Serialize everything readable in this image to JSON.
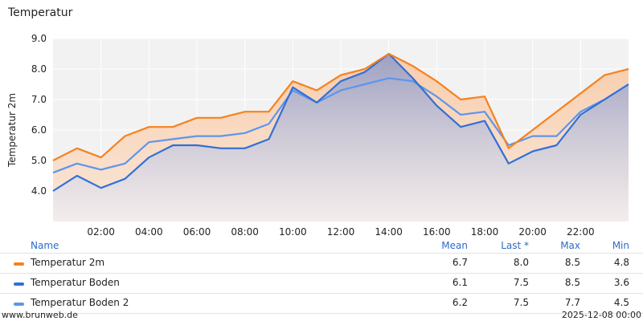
{
  "title": "Temperatur",
  "chart_data": {
    "type": "area",
    "ylabel": "Temperatur 2m",
    "xlabel": "",
    "ylim": [
      3.0,
      9.0
    ],
    "xlim": [
      0,
      24
    ],
    "yticks": [
      4.0,
      5.0,
      6.0,
      7.0,
      8.0,
      9.0
    ],
    "ytick_labels": [
      "4.0",
      "5.0",
      "6.0",
      "7.0",
      "8.0",
      "9.0"
    ],
    "xticks": [
      2,
      4,
      6,
      8,
      10,
      12,
      14,
      16,
      18,
      20,
      22
    ],
    "xtick_labels": [
      "02:00",
      "04:00",
      "06:00",
      "08:00",
      "10:00",
      "12:00",
      "14:00",
      "16:00",
      "18:00",
      "20:00",
      "22:00"
    ],
    "grid": true,
    "x": [
      0,
      1,
      2,
      3,
      4,
      5,
      6,
      7,
      8,
      9,
      10,
      11,
      12,
      13,
      14,
      15,
      16,
      17,
      18,
      19,
      20,
      21,
      22,
      23,
      24
    ],
    "series": [
      {
        "name": "Temperatur 2m",
        "color": "#f58220",
        "values": [
          5.0,
          5.4,
          5.1,
          5.8,
          6.1,
          6.1,
          6.4,
          6.4,
          6.6,
          6.6,
          7.6,
          7.3,
          7.8,
          8.0,
          8.5,
          8.1,
          7.6,
          7.0,
          7.1,
          5.4,
          6.0,
          6.6,
          7.2,
          7.8,
          8.0
        ]
      },
      {
        "name": "Temperatur Boden",
        "color": "#3170d6",
        "values": [
          4.0,
          4.5,
          4.1,
          4.4,
          5.1,
          5.5,
          5.5,
          5.4,
          5.4,
          5.7,
          7.4,
          6.9,
          7.6,
          7.9,
          8.5,
          7.7,
          6.8,
          6.1,
          6.3,
          4.9,
          5.3,
          5.5,
          6.5,
          7.0,
          7.5
        ]
      },
      {
        "name": "Temperatur Boden 2",
        "color": "#5d96ec",
        "values": [
          4.6,
          4.9,
          4.7,
          4.9,
          5.6,
          5.7,
          5.8,
          5.8,
          5.9,
          6.2,
          7.3,
          6.9,
          7.3,
          7.5,
          7.7,
          7.6,
          7.1,
          6.5,
          6.6,
          5.5,
          5.8,
          5.8,
          6.6,
          7.0,
          7.5
        ]
      }
    ]
  },
  "legend": {
    "headers": {
      "name": "Name",
      "mean": "Mean",
      "last": "Last *",
      "max": "Max",
      "min": "Min"
    },
    "rows": [
      {
        "name": "Temperatur 2m",
        "color": "#f58220",
        "mean": "6.7",
        "last": "8.0",
        "max": "8.5",
        "min": "4.8"
      },
      {
        "name": "Temperatur Boden",
        "color": "#3170d6",
        "mean": "6.1",
        "last": "7.5",
        "max": "8.5",
        "min": "3.6"
      },
      {
        "name": "Temperatur Boden 2",
        "color": "#5d96ec",
        "mean": "6.2",
        "last": "7.5",
        "max": "7.7",
        "min": "4.5"
      }
    ]
  },
  "footer": {
    "source": "www.brunweb.de",
    "timestamp": "2025-12-08 00:00"
  }
}
